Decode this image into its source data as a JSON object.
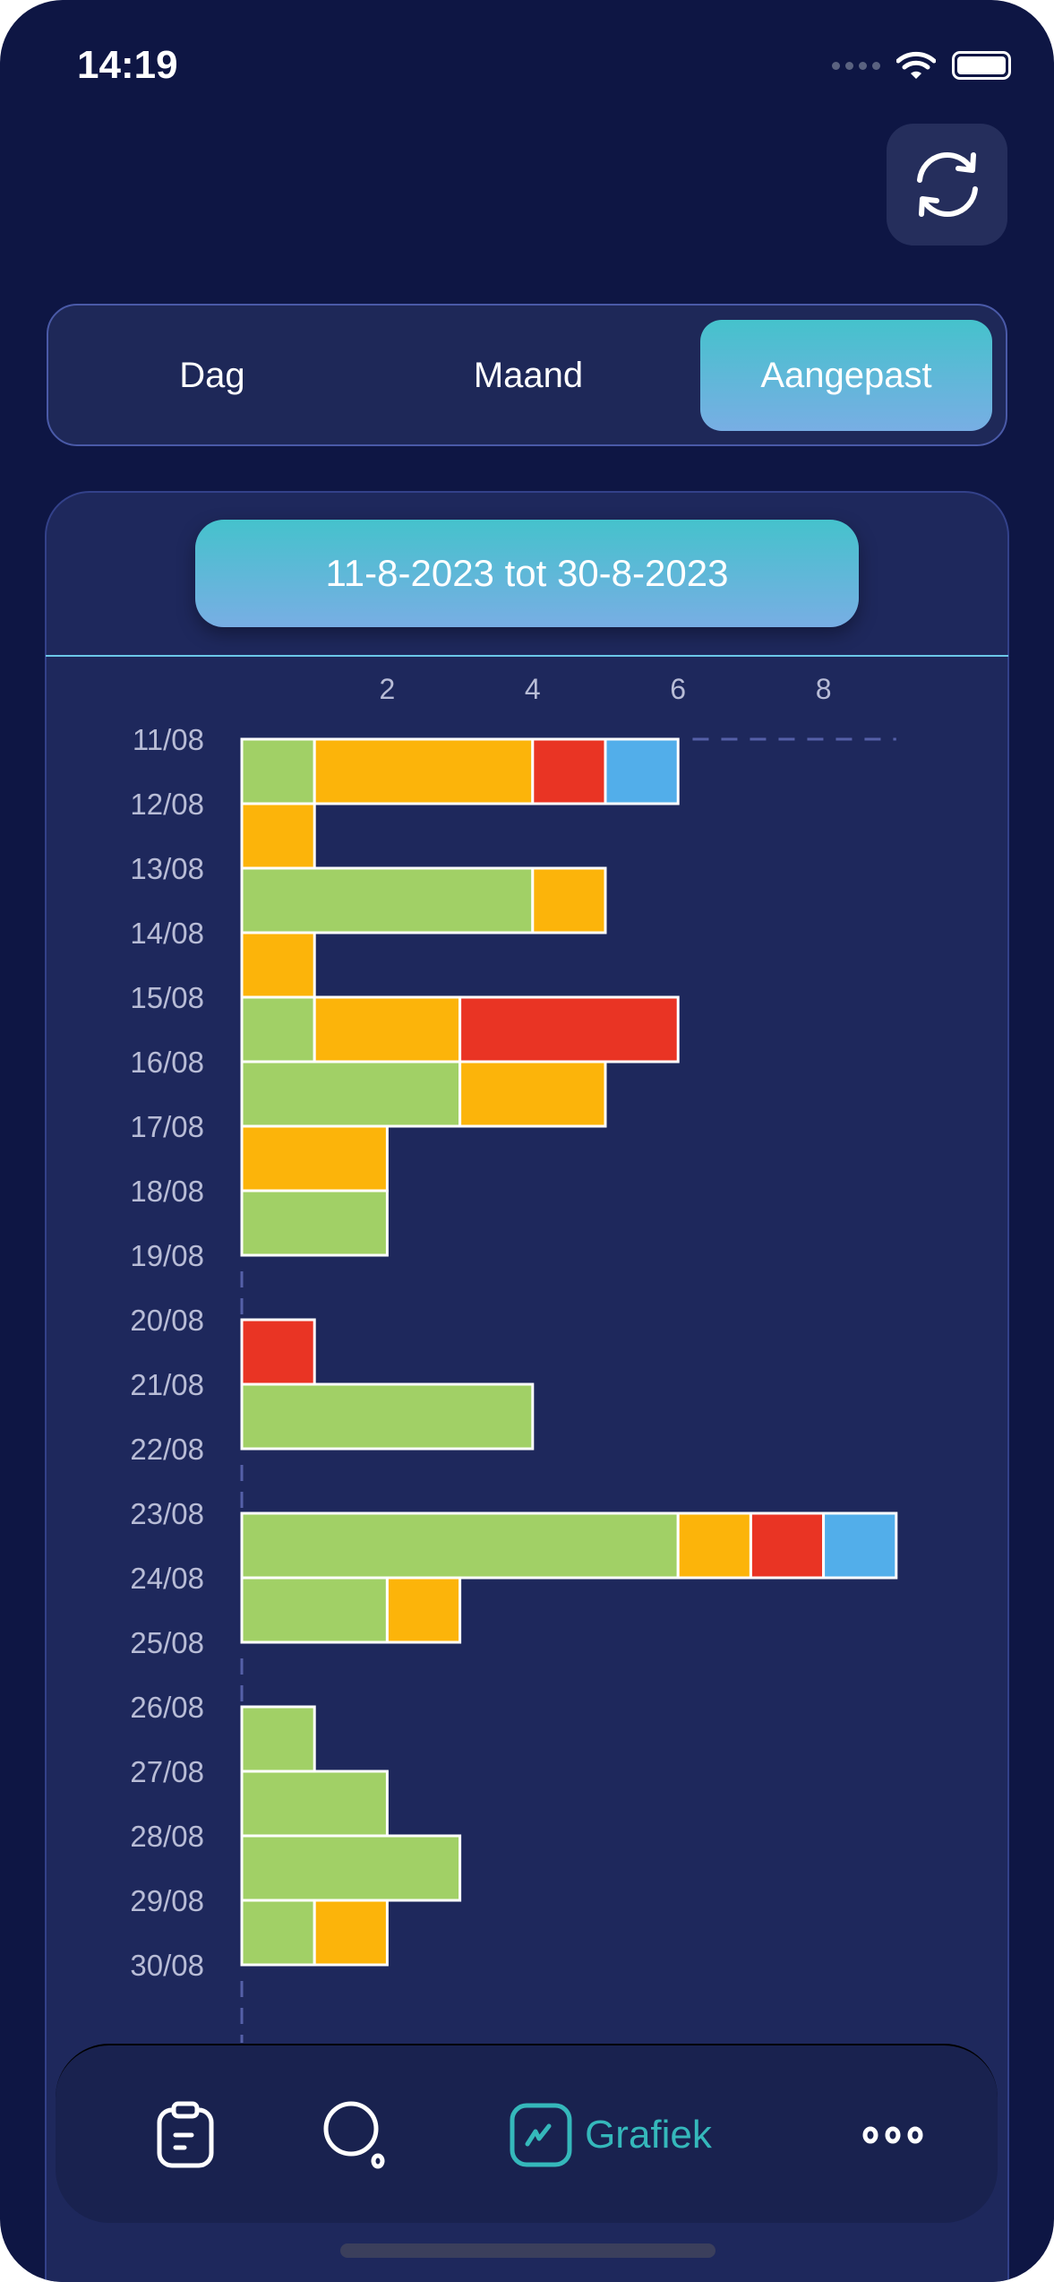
{
  "status_bar": {
    "time": "14:19"
  },
  "header": {
    "refresh_icon": "refresh-icon"
  },
  "segmented": {
    "items": [
      {
        "label": "Dag"
      },
      {
        "label": "Maand"
      },
      {
        "label": "Aangepast"
      }
    ],
    "selected": "Aangepast"
  },
  "date_range": {
    "label": "11-8-2023 tot 30-8-2023"
  },
  "chart_data": {
    "type": "bar",
    "orientation": "horizontal",
    "stacked": true,
    "x_ticks": [
      "2",
      "4",
      "6",
      "8"
    ],
    "xlim": [
      0,
      9
    ],
    "categories": [
      "11/08",
      "12/08",
      "13/08",
      "14/08",
      "15/08",
      "16/08",
      "17/08",
      "18/08",
      "19/08",
      "20/08",
      "21/08",
      "22/08",
      "23/08",
      "24/08",
      "25/08",
      "26/08",
      "27/08",
      "28/08",
      "29/08",
      "30/08"
    ],
    "series": [
      {
        "color": "#a1d066",
        "values": [
          1,
          0,
          4,
          0,
          1,
          3,
          0,
          2,
          0,
          0,
          4,
          0,
          6,
          2,
          0,
          1,
          2,
          3,
          1,
          0
        ]
      },
      {
        "color": "#fcb40a",
        "values": [
          3,
          1,
          1,
          1,
          2,
          2,
          2,
          0,
          0,
          0,
          0,
          0,
          1,
          1,
          0,
          0,
          0,
          0,
          1,
          0
        ]
      },
      {
        "color": "#e93424",
        "values": [
          1,
          0,
          0,
          0,
          3,
          0,
          0,
          0,
          0,
          1,
          0,
          0,
          1,
          0,
          0,
          0,
          0,
          0,
          0,
          0
        ]
      },
      {
        "color": "#52aeea",
        "values": [
          1,
          0,
          0,
          0,
          0,
          0,
          0,
          0,
          0,
          0,
          0,
          0,
          1,
          0,
          0,
          0,
          0,
          0,
          0,
          0
        ]
      }
    ]
  },
  "nav": {
    "items": [
      {
        "icon": "clipboard-icon"
      },
      {
        "icon": "search-icon"
      },
      {
        "icon": "chart-icon",
        "label": "Grafiek"
      },
      {
        "icon": "more-icon"
      }
    ],
    "active_color": "#35b8bb"
  }
}
